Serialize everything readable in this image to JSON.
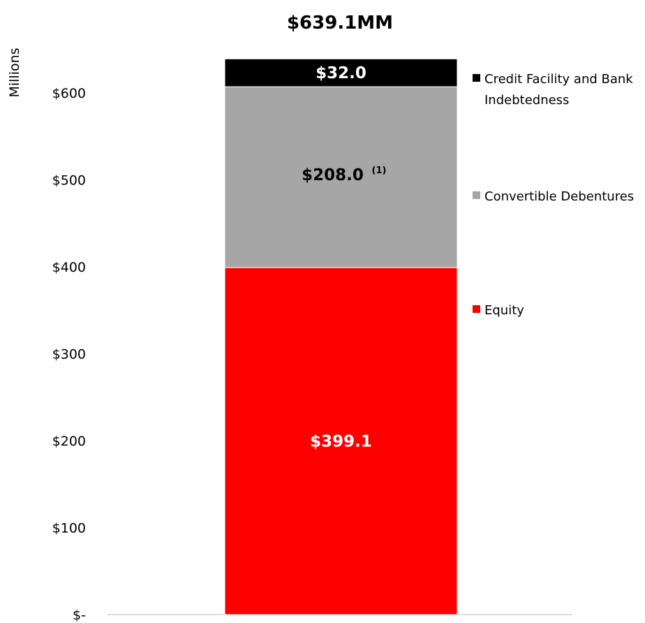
{
  "chart_data": {
    "type": "bar",
    "stacked": true,
    "title": "$639.1MM",
    "ylabel": "Millions",
    "xlabel": "",
    "ylim": [
      0,
      650
    ],
    "yticks": [
      {
        "value": 0,
        "label": "$-"
      },
      {
        "value": 100,
        "label": "$100"
      },
      {
        "value": 200,
        "label": "$200"
      },
      {
        "value": 300,
        "label": "$300"
      },
      {
        "value": 400,
        "label": "$400"
      },
      {
        "value": 500,
        "label": "$500"
      },
      {
        "value": 600,
        "label": "$600"
      }
    ],
    "categories": [
      ""
    ],
    "grid": false,
    "legend_position": "right",
    "series": [
      {
        "name": "Equity",
        "values": [
          399.1
        ],
        "color": "#ff0000",
        "label": "$399.1",
        "label_color": "#ffffff",
        "footnote": ""
      },
      {
        "name": "Convertible Debentures",
        "values": [
          208.0
        ],
        "color": "#a6a6a6",
        "label": "$208.0",
        "label_color": "#000000",
        "footnote": "(1)"
      },
      {
        "name": "Credit Facility and Bank Indebtedness",
        "values": [
          32.0
        ],
        "color": "#000000",
        "label": "$32.0",
        "label_color": "#ffffff",
        "footnote": ""
      }
    ],
    "legend": [
      {
        "lines": [
          "Credit Facility and Bank",
          "Indebtedness"
        ],
        "color": "#000000"
      },
      {
        "lines": [
          "Convertible Debentures"
        ],
        "color": "#a6a6a6"
      },
      {
        "lines": [
          "Equity"
        ],
        "color": "#ff0000"
      }
    ]
  }
}
